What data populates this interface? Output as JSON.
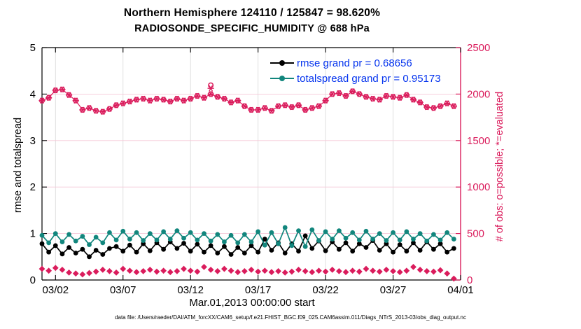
{
  "title": {
    "line1": "Northern Hemisphere 124110 / 125847 = 98.620%",
    "line2": "RADIOSONDE_SPECIFIC_HUMIDITY @ 688 hPa"
  },
  "legend": {
    "rmse_label": "rmse grand pr = 0.68656",
    "totalspread_label": "totalspread grand pr = 0.95173",
    "text_color": "#0433ee"
  },
  "axes": {
    "left": {
      "label": "rmse and totalspread",
      "ticks": [
        0,
        1,
        2,
        3,
        4,
        5
      ],
      "range": [
        0,
        5
      ],
      "color": "#000000"
    },
    "right": {
      "label": "# of obs: o=possible; *=evaluated",
      "ticks": [
        0,
        500,
        1000,
        1500,
        2000,
        2500
      ],
      "range": [
        0,
        2500
      ],
      "color": "#da1c5c"
    },
    "x": {
      "label": "Mar.01,2013 00:00:00 start",
      "tick_labels": [
        "03/02",
        "03/07",
        "03/12",
        "03/17",
        "03/22",
        "03/27",
        "04/01"
      ],
      "tick_days": [
        2,
        7,
        12,
        17,
        22,
        27,
        32
      ],
      "range_days": [
        1,
        32
      ]
    }
  },
  "footer": "data file: /Users/raeder/DAI/ATM_forcXX/CAM6_setup/f.e21.FHIST_BGC.f09_025.CAM6assim.011/Diags_NTrS_2013-03/obs_diag_output.nc",
  "colors": {
    "pink": "#da1c5c",
    "teal": "#12867d",
    "black": "#000000",
    "grid_v": "#dbdbdb",
    "grid_h": "#f5c8d7"
  },
  "chart_data": {
    "type": "line",
    "xlim_days": [
      1,
      32
    ],
    "ylim_left": [
      0,
      5
    ],
    "ylim_right": [
      0,
      2500
    ],
    "grid": "on",
    "legend_position": "top-inside",
    "x_days": [
      1.0,
      1.5,
      2.0,
      2.5,
      3.0,
      3.5,
      4.0,
      4.5,
      5.0,
      5.5,
      6.0,
      6.5,
      7.0,
      7.5,
      8.0,
      8.5,
      9.0,
      9.5,
      10.0,
      10.5,
      11.0,
      11.5,
      12.0,
      12.5,
      13.0,
      13.5,
      14.0,
      14.5,
      15.0,
      15.5,
      16.0,
      16.5,
      17.0,
      17.5,
      18.0,
      18.5,
      19.0,
      19.5,
      20.0,
      20.5,
      21.0,
      21.5,
      22.0,
      22.5,
      23.0,
      23.5,
      24.0,
      24.5,
      25.0,
      25.5,
      26.0,
      26.5,
      27.0,
      27.5,
      28.0,
      28.5,
      29.0,
      29.5,
      30.0,
      30.5,
      31.0,
      31.5
    ],
    "series": [
      {
        "name": "rmse",
        "axis": "left",
        "color": "#000000",
        "marker": "filled-circle",
        "line": true,
        "values": [
          0.78,
          0.6,
          0.74,
          0.56,
          0.7,
          0.58,
          0.66,
          0.5,
          0.64,
          0.55,
          0.68,
          0.72,
          0.62,
          0.75,
          0.6,
          0.78,
          0.63,
          0.8,
          0.66,
          0.82,
          0.68,
          0.79,
          0.62,
          0.77,
          0.6,
          0.74,
          0.58,
          0.72,
          0.55,
          0.7,
          0.58,
          0.74,
          0.6,
          0.88,
          0.64,
          0.8,
          0.58,
          0.78,
          0.62,
          0.95,
          0.68,
          0.84,
          0.63,
          0.82,
          0.66,
          0.8,
          0.62,
          0.78,
          0.7,
          0.85,
          0.64,
          0.78,
          0.6,
          0.76,
          0.62,
          0.8,
          0.64,
          0.82,
          0.66,
          0.78,
          0.6,
          0.68
        ]
      },
      {
        "name": "totalspread",
        "axis": "left",
        "color": "#12867d",
        "marker": "filled-circle",
        "line": true,
        "values": [
          0.96,
          0.8,
          1.0,
          0.82,
          0.98,
          0.84,
          0.94,
          0.76,
          0.92,
          0.8,
          1.02,
          0.86,
          1.05,
          0.88,
          1.02,
          0.85,
          1.0,
          0.86,
          1.04,
          0.88,
          1.06,
          0.9,
          1.02,
          0.86,
          1.0,
          0.84,
          0.98,
          0.82,
          0.96,
          0.8,
          0.98,
          0.82,
          1.04,
          0.75,
          1.02,
          0.78,
          1.13,
          0.74,
          1.06,
          0.72,
          1.08,
          0.85,
          1.04,
          0.88,
          1.06,
          0.9,
          1.02,
          0.86,
          1.05,
          0.88,
          1.0,
          0.85,
          1.02,
          0.86,
          1.04,
          0.88,
          1.0,
          0.84,
          0.98,
          0.86,
          1.02,
          0.88
        ]
      },
      {
        "name": "obs-possible-evaluated",
        "axis": "right",
        "color": "#da1c5c",
        "marker": "circle-asterisk",
        "line": true,
        "values": [
          1930,
          1960,
          2040,
          2050,
          1990,
          1930,
          1830,
          1850,
          1820,
          1810,
          1840,
          1880,
          1900,
          1920,
          1940,
          1950,
          1930,
          1950,
          1940,
          1920,
          1950,
          1930,
          1950,
          1980,
          1960,
          2000,
          1970,
          1950,
          1910,
          1930,
          1870,
          1830,
          1830,
          1850,
          1820,
          1870,
          1880,
          1860,
          1880,
          1830,
          1850,
          1870,
          1930,
          2000,
          2010,
          1980,
          2030,
          2000,
          1970,
          1950,
          1940,
          1980,
          1970,
          1960,
          1990,
          1940,
          1910,
          1860,
          1850,
          1870,
          1900,
          1870
        ]
      },
      {
        "name": "obs-rejected",
        "axis": "right",
        "color": "#da1c5c",
        "marker": "diamond",
        "line": false,
        "values": [
          120,
          100,
          130,
          110,
          80,
          70,
          60,
          75,
          90,
          110,
          95,
          80,
          120,
          100,
          85,
          95,
          110,
          90,
          100,
          85,
          95,
          120,
          100,
          90,
          140,
          110,
          95,
          120,
          100,
          85,
          95,
          110,
          90,
          100,
          85,
          95,
          80,
          90,
          110,
          95,
          85,
          100,
          90,
          110,
          95,
          85,
          100,
          90,
          120,
          100,
          90,
          110,
          95,
          85,
          100,
          140,
          110,
          95,
          90,
          105,
          70,
          15
        ]
      }
    ],
    "outlier": {
      "x_day": 13.5,
      "possible": 2095,
      "evaluated": 2062
    }
  }
}
